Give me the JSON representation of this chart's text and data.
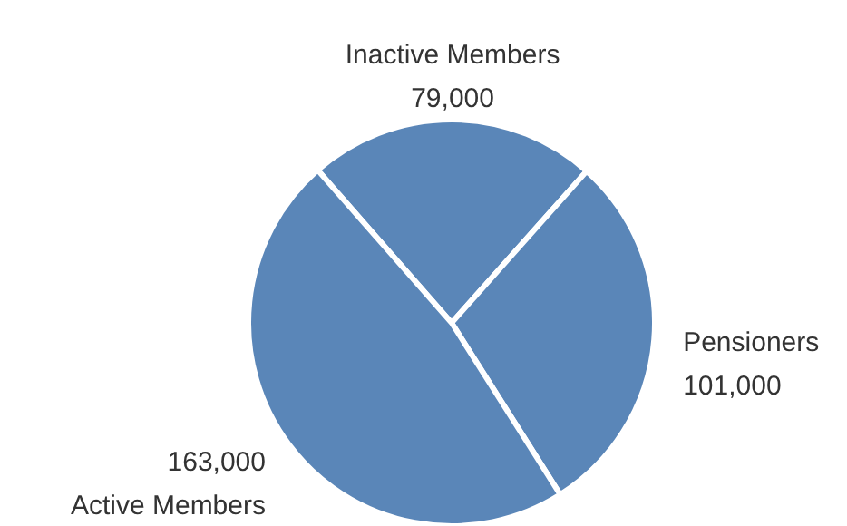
{
  "chart_data": {
    "type": "pie",
    "categories": [
      "Inactive Members",
      "Pensioners",
      "Active Members"
    ],
    "values": [
      79000,
      101000,
      163000
    ],
    "value_labels": [
      "79,000",
      "101,000",
      "163,000"
    ],
    "colors": [
      "#5a86b8",
      "#5a86b8",
      "#5a86b8"
    ]
  }
}
